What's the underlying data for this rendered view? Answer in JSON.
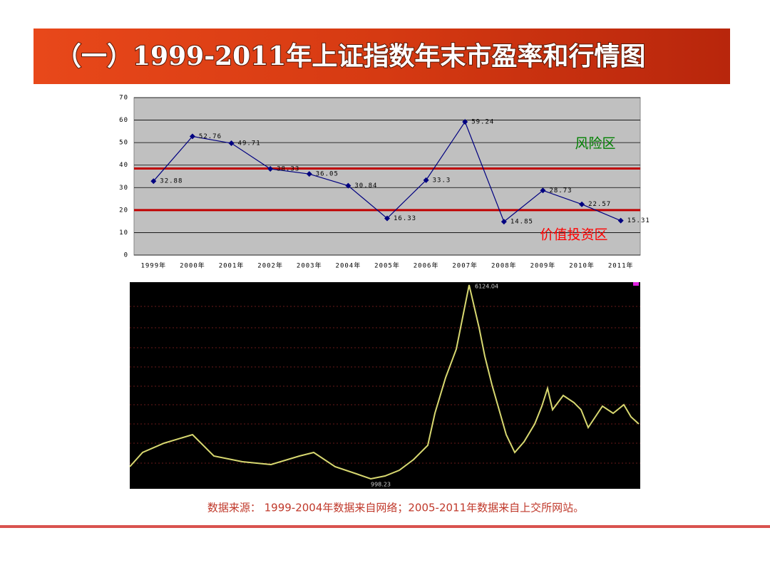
{
  "header": {
    "title": "（一）1999-2011年上证指数年末市盈率和行情图"
  },
  "chart_data": {
    "type": "line",
    "categories": [
      "1999年",
      "2000年",
      "2001年",
      "2002年",
      "2003年",
      "2004年",
      "2005年",
      "2006年",
      "2007年",
      "2008年",
      "2009年",
      "2010年",
      "2011年"
    ],
    "series": [
      {
        "name": "市盈率",
        "color": "#000080",
        "values": [
          32.88,
          52.76,
          49.71,
          38.33,
          36.05,
          30.84,
          16.33,
          33.3,
          59.24,
          14.85,
          28.73,
          22.57,
          15.31
        ]
      }
    ],
    "ylim": [
      0,
      70
    ],
    "yticks": [
      0,
      10,
      20,
      30,
      40,
      50,
      60,
      70
    ],
    "grid": true,
    "reference_lines": [
      38.5,
      20
    ],
    "reference_color": "#c00000",
    "annotations": [
      {
        "text": "风险区",
        "color": "#008000"
      },
      {
        "text": "价值投资区",
        "color": "#ff0000"
      }
    ]
  },
  "kline_image": {
    "high_label": "6124.04",
    "low_label": "998.23"
  },
  "footer": {
    "source": "数据来源： 1999-2004年数据来自网络；2005-2011年数据来自上交所网站。"
  }
}
